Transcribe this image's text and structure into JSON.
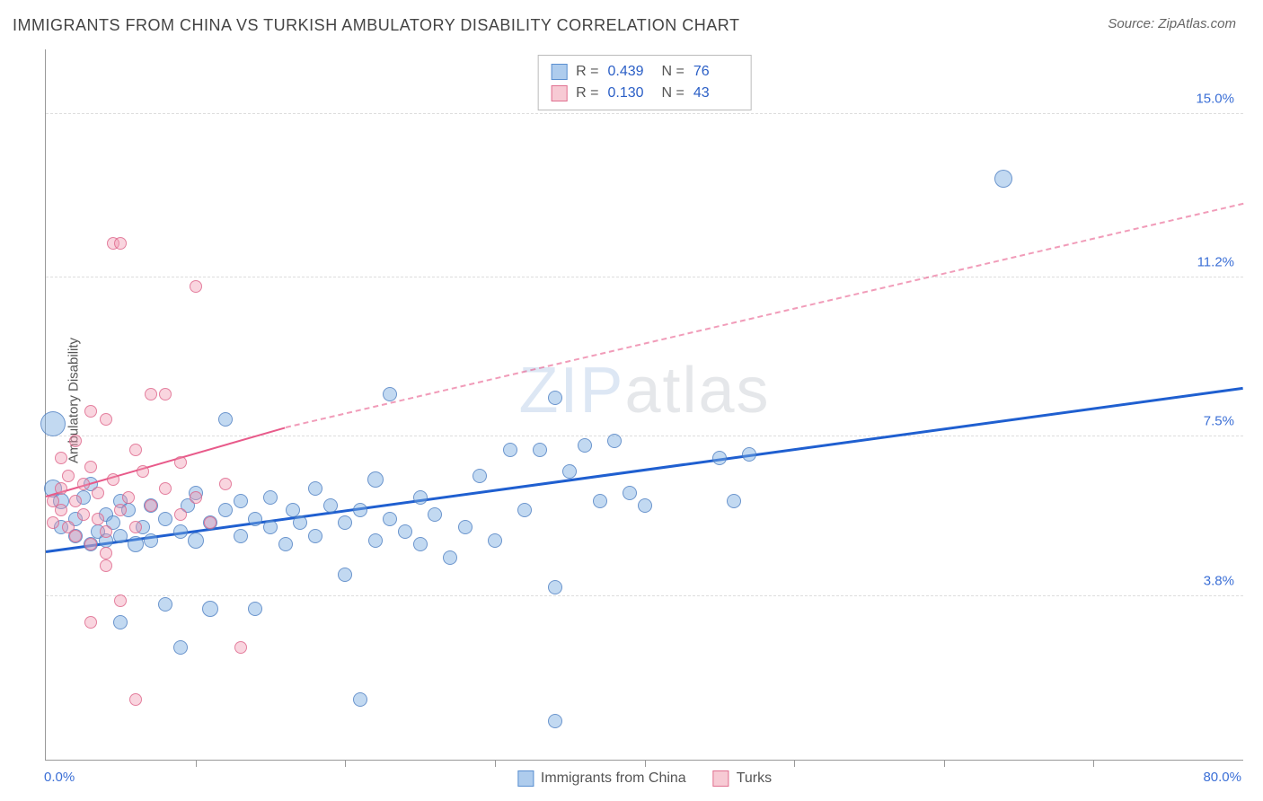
{
  "title": "IMMIGRANTS FROM CHINA VS TURKISH AMBULATORY DISABILITY CORRELATION CHART",
  "source_prefix": "Source: ",
  "source_name": "ZipAtlas.com",
  "ylabel": "Ambulatory Disability",
  "watermark_a": "ZIP",
  "watermark_b": "atlas",
  "chart": {
    "type": "scatter",
    "xlim": [
      0,
      80
    ],
    "ylim": [
      0,
      16.5
    ],
    "y_gridlines": [
      3.8,
      7.5,
      11.2,
      15.0
    ],
    "y_tick_labels": [
      "3.8%",
      "7.5%",
      "11.2%",
      "15.0%"
    ],
    "x_ticks": [
      10,
      20,
      30,
      40,
      50,
      60,
      70
    ],
    "x_min_label": "0.0%",
    "x_max_label": "80.0%",
    "background_color": "#ffffff",
    "grid_color": "#dddddd",
    "axis_color": "#999999",
    "tick_label_color": "#3b6fd6",
    "series": [
      {
        "name": "Immigrants from China",
        "color_fill": "rgba(120,170,225,0.45)",
        "color_stroke": "rgba(70,120,190,0.7)",
        "marker_class": "pt-blue",
        "R": "0.439",
        "N": "76",
        "trend": {
          "x1": 0,
          "y1": 4.8,
          "x2": 80,
          "y2": 8.6,
          "color": "#1f5fd0",
          "width": 3,
          "style": "solid"
        },
        "points": [
          {
            "x": 0.5,
            "y": 7.8,
            "r": 14
          },
          {
            "x": 0.5,
            "y": 6.3,
            "r": 10
          },
          {
            "x": 1,
            "y": 6.0,
            "r": 9
          },
          {
            "x": 1,
            "y": 5.4,
            "r": 8
          },
          {
            "x": 2,
            "y": 5.6,
            "r": 8
          },
          {
            "x": 2,
            "y": 5.2,
            "r": 8
          },
          {
            "x": 2.5,
            "y": 6.1,
            "r": 8
          },
          {
            "x": 3,
            "y": 5.0,
            "r": 8
          },
          {
            "x": 3,
            "y": 6.4,
            "r": 8
          },
          {
            "x": 3.5,
            "y": 5.3,
            "r": 8
          },
          {
            "x": 4,
            "y": 5.7,
            "r": 8
          },
          {
            "x": 4,
            "y": 5.1,
            "r": 8
          },
          {
            "x": 4.5,
            "y": 5.5,
            "r": 8
          },
          {
            "x": 5,
            "y": 6.0,
            "r": 8
          },
          {
            "x": 5,
            "y": 5.2,
            "r": 8
          },
          {
            "x": 5.5,
            "y": 5.8,
            "r": 8
          },
          {
            "x": 6,
            "y": 5.0,
            "r": 9
          },
          {
            "x": 6.5,
            "y": 5.4,
            "r": 8
          },
          {
            "x": 7,
            "y": 5.9,
            "r": 8
          },
          {
            "x": 7,
            "y": 5.1,
            "r": 8
          },
          {
            "x": 8,
            "y": 5.6,
            "r": 8
          },
          {
            "x": 8,
            "y": 3.6,
            "r": 8
          },
          {
            "x": 9,
            "y": 5.3,
            "r": 8
          },
          {
            "x": 9.5,
            "y": 5.9,
            "r": 8
          },
          {
            "x": 10,
            "y": 5.1,
            "r": 9
          },
          {
            "x": 10,
            "y": 6.2,
            "r": 8
          },
          {
            "x": 11,
            "y": 5.5,
            "r": 8
          },
          {
            "x": 11,
            "y": 3.5,
            "r": 9
          },
          {
            "x": 12,
            "y": 7.9,
            "r": 8
          },
          {
            "x": 12,
            "y": 5.8,
            "r": 8
          },
          {
            "x": 13,
            "y": 5.2,
            "r": 8
          },
          {
            "x": 13,
            "y": 6.0,
            "r": 8
          },
          {
            "x": 14,
            "y": 3.5,
            "r": 8
          },
          {
            "x": 14,
            "y": 5.6,
            "r": 8
          },
          {
            "x": 15,
            "y": 5.4,
            "r": 8
          },
          {
            "x": 15,
            "y": 6.1,
            "r": 8
          },
          {
            "x": 16,
            "y": 5.0,
            "r": 8
          },
          {
            "x": 16.5,
            "y": 5.8,
            "r": 8
          },
          {
            "x": 17,
            "y": 5.5,
            "r": 8
          },
          {
            "x": 18,
            "y": 5.2,
            "r": 8
          },
          {
            "x": 18,
            "y": 6.3,
            "r": 8
          },
          {
            "x": 19,
            "y": 5.9,
            "r": 8
          },
          {
            "x": 20,
            "y": 5.5,
            "r": 8
          },
          {
            "x": 20,
            "y": 4.3,
            "r": 8
          },
          {
            "x": 21,
            "y": 1.4,
            "r": 8
          },
          {
            "x": 21,
            "y": 5.8,
            "r": 8
          },
          {
            "x": 22,
            "y": 6.5,
            "r": 9
          },
          {
            "x": 22,
            "y": 5.1,
            "r": 8
          },
          {
            "x": 23,
            "y": 8.5,
            "r": 8
          },
          {
            "x": 23,
            "y": 5.6,
            "r": 8
          },
          {
            "x": 24,
            "y": 5.3,
            "r": 8
          },
          {
            "x": 25,
            "y": 5.0,
            "r": 8
          },
          {
            "x": 25,
            "y": 6.1,
            "r": 8
          },
          {
            "x": 26,
            "y": 5.7,
            "r": 8
          },
          {
            "x": 27,
            "y": 4.7,
            "r": 8
          },
          {
            "x": 28,
            "y": 5.4,
            "r": 8
          },
          {
            "x": 29,
            "y": 6.6,
            "r": 8
          },
          {
            "x": 30,
            "y": 5.1,
            "r": 8
          },
          {
            "x": 31,
            "y": 7.2,
            "r": 8
          },
          {
            "x": 32,
            "y": 5.8,
            "r": 8
          },
          {
            "x": 33,
            "y": 7.2,
            "r": 8
          },
          {
            "x": 34,
            "y": 8.4,
            "r": 8
          },
          {
            "x": 34,
            "y": 4.0,
            "r": 8
          },
          {
            "x": 34,
            "y": 0.9,
            "r": 8
          },
          {
            "x": 35,
            "y": 6.7,
            "r": 8
          },
          {
            "x": 36,
            "y": 7.3,
            "r": 8
          },
          {
            "x": 37,
            "y": 6.0,
            "r": 8
          },
          {
            "x": 38,
            "y": 7.4,
            "r": 8
          },
          {
            "x": 39,
            "y": 6.2,
            "r": 8
          },
          {
            "x": 40,
            "y": 5.9,
            "r": 8
          },
          {
            "x": 45,
            "y": 7.0,
            "r": 8
          },
          {
            "x": 46,
            "y": 6.0,
            "r": 8
          },
          {
            "x": 47,
            "y": 7.1,
            "r": 8
          },
          {
            "x": 64,
            "y": 13.5,
            "r": 10
          },
          {
            "x": 5,
            "y": 3.2,
            "r": 8
          },
          {
            "x": 9,
            "y": 2.6,
            "r": 8
          }
        ]
      },
      {
        "name": "Turks",
        "color_fill": "rgba(240,150,175,0.4)",
        "color_stroke": "rgba(220,90,130,0.7)",
        "marker_class": "pt-pink",
        "R": "0.130",
        "N": "43",
        "trend_solid": {
          "x1": 0,
          "y1": 6.1,
          "x2": 16,
          "y2": 7.7,
          "color": "#e85a8a",
          "width": 2.5,
          "style": "solid"
        },
        "trend_dash": {
          "x1": 16,
          "y1": 7.7,
          "x2": 80,
          "y2": 12.9,
          "color": "#e85a8a",
          "width": 2,
          "style": "dashed"
        },
        "points": [
          {
            "x": 0.5,
            "y": 6.0,
            "r": 7
          },
          {
            "x": 0.5,
            "y": 5.5,
            "r": 7
          },
          {
            "x": 1,
            "y": 6.3,
            "r": 7
          },
          {
            "x": 1,
            "y": 5.8,
            "r": 7
          },
          {
            "x": 1,
            "y": 7.0,
            "r": 7
          },
          {
            "x": 1.5,
            "y": 5.4,
            "r": 7
          },
          {
            "x": 1.5,
            "y": 6.6,
            "r": 7
          },
          {
            "x": 2,
            "y": 5.2,
            "r": 7
          },
          {
            "x": 2,
            "y": 6.0,
            "r": 7
          },
          {
            "x": 2,
            "y": 7.4,
            "r": 7
          },
          {
            "x": 2.5,
            "y": 5.7,
            "r": 7
          },
          {
            "x": 2.5,
            "y": 6.4,
            "r": 7
          },
          {
            "x": 3,
            "y": 5.0,
            "r": 7
          },
          {
            "x": 3,
            "y": 6.8,
            "r": 7
          },
          {
            "x": 3,
            "y": 8.1,
            "r": 7
          },
          {
            "x": 3.5,
            "y": 5.6,
            "r": 7
          },
          {
            "x": 3.5,
            "y": 6.2,
            "r": 7
          },
          {
            "x": 4,
            "y": 7.9,
            "r": 7
          },
          {
            "x": 4,
            "y": 5.3,
            "r": 7
          },
          {
            "x": 4,
            "y": 4.5,
            "r": 7
          },
          {
            "x": 4.5,
            "y": 6.5,
            "r": 7
          },
          {
            "x": 4.5,
            "y": 12.0,
            "r": 7
          },
          {
            "x": 5,
            "y": 5.8,
            "r": 7
          },
          {
            "x": 5,
            "y": 12.0,
            "r": 7
          },
          {
            "x": 5.5,
            "y": 6.1,
            "r": 7
          },
          {
            "x": 6,
            "y": 5.4,
            "r": 7
          },
          {
            "x": 6,
            "y": 7.2,
            "r": 7
          },
          {
            "x": 6.5,
            "y": 6.7,
            "r": 7
          },
          {
            "x": 7,
            "y": 5.9,
            "r": 7
          },
          {
            "x": 7,
            "y": 8.5,
            "r": 7
          },
          {
            "x": 8,
            "y": 6.3,
            "r": 7
          },
          {
            "x": 8,
            "y": 8.5,
            "r": 7
          },
          {
            "x": 9,
            "y": 5.7,
            "r": 7
          },
          {
            "x": 9,
            "y": 6.9,
            "r": 7
          },
          {
            "x": 10,
            "y": 6.1,
            "r": 7
          },
          {
            "x": 10,
            "y": 11.0,
            "r": 7
          },
          {
            "x": 11,
            "y": 5.5,
            "r": 7
          },
          {
            "x": 12,
            "y": 6.4,
            "r": 7
          },
          {
            "x": 13,
            "y": 2.6,
            "r": 7
          },
          {
            "x": 5,
            "y": 3.7,
            "r": 7
          },
          {
            "x": 6,
            "y": 1.4,
            "r": 7
          },
          {
            "x": 3,
            "y": 3.2,
            "r": 7
          },
          {
            "x": 4,
            "y": 4.8,
            "r": 7
          }
        ]
      }
    ]
  },
  "legend_top": {
    "rows": [
      {
        "swatch": "swatch-blue",
        "r_label": "R =",
        "r_val": "0.439",
        "n_label": "N =",
        "n_val": "76"
      },
      {
        "swatch": "swatch-pink",
        "r_label": "R =",
        "r_val": "0.130",
        "n_label": "N =",
        "n_val": "43"
      }
    ]
  },
  "legend_bottom": {
    "items": [
      {
        "swatch": "swatch-blue",
        "label": "Immigrants from China"
      },
      {
        "swatch": "swatch-pink",
        "label": "Turks"
      }
    ]
  }
}
